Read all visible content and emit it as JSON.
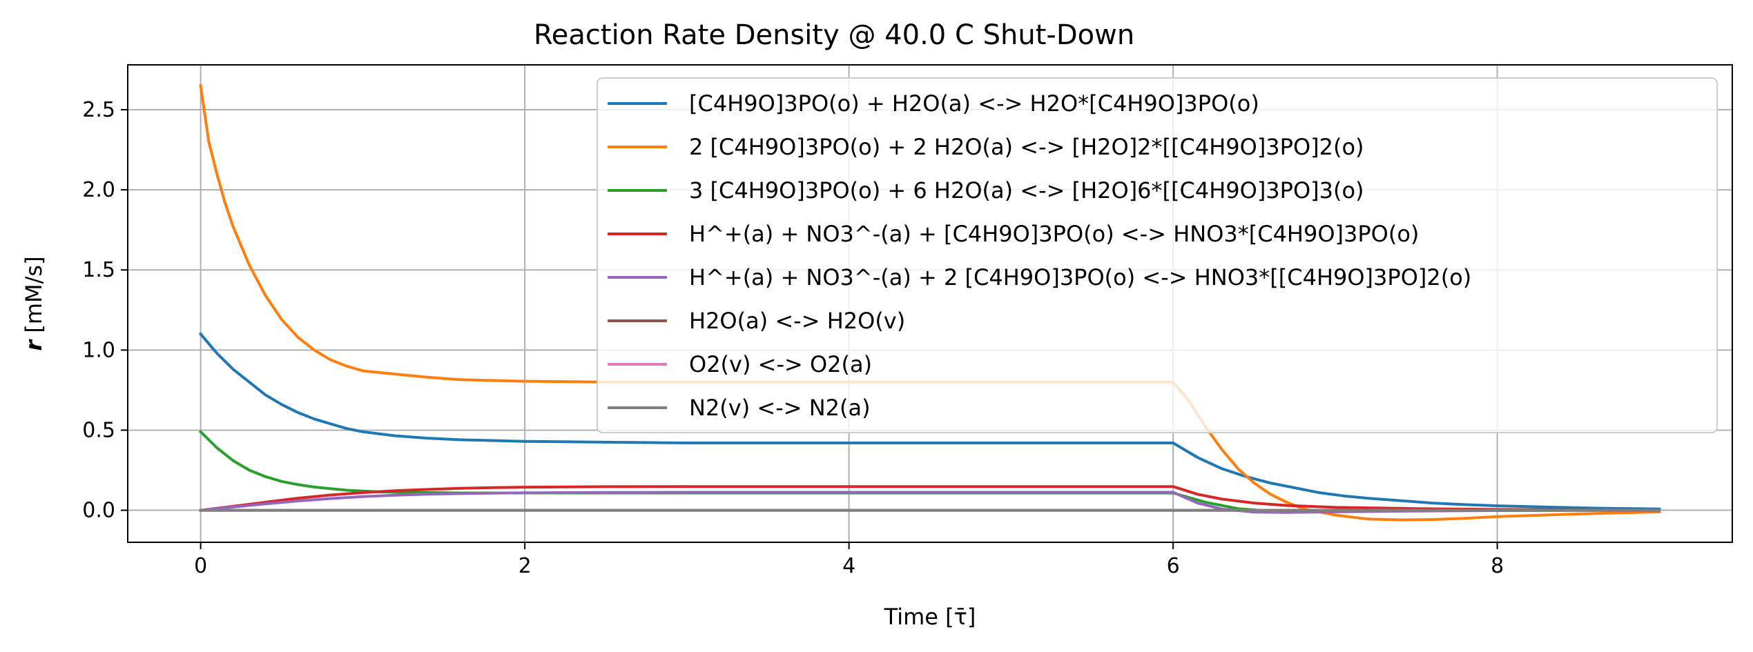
{
  "chart_data": {
    "type": "line",
    "title": "Reaction Rate Density @ 40.0 C Shut-Down",
    "xlabel": "Time [τ̄]",
    "ylabel_symbol": "r",
    "ylabel_unit": " [mM/s]",
    "xlim": [
      -0.45,
      9.45
    ],
    "ylim": [
      -0.2,
      2.78
    ],
    "x_ticks": [
      0,
      2,
      4,
      6,
      8
    ],
    "x_tick_labels": [
      "0",
      "2",
      "4",
      "6",
      "8"
    ],
    "y_ticks": [
      0.0,
      0.5,
      1.0,
      1.5,
      2.0,
      2.5
    ],
    "y_tick_labels": [
      "0.0",
      "0.5",
      "1.0",
      "1.5",
      "2.0",
      "2.5"
    ],
    "grid": true,
    "legend_position": "top-right",
    "series": [
      {
        "name": "[C4H9O]3PO(o) + H2O(a) <-> H2O*[C4H9O]3PO(o)",
        "color": "#1f77b4",
        "x": [
          0,
          0.1,
          0.2,
          0.3,
          0.4,
          0.5,
          0.6,
          0.7,
          0.8,
          0.9,
          1.0,
          1.2,
          1.4,
          1.6,
          1.8,
          2.0,
          2.5,
          3.0,
          4.0,
          5.0,
          6.0,
          6.15,
          6.3,
          6.45,
          6.6,
          6.75,
          6.9,
          7.05,
          7.2,
          7.4,
          7.6,
          7.8,
          8.0,
          8.3,
          8.6,
          9.0
        ],
        "y": [
          1.1,
          0.98,
          0.88,
          0.8,
          0.72,
          0.66,
          0.61,
          0.57,
          0.54,
          0.51,
          0.49,
          0.465,
          0.45,
          0.44,
          0.435,
          0.43,
          0.425,
          0.42,
          0.42,
          0.42,
          0.42,
          0.33,
          0.26,
          0.21,
          0.17,
          0.14,
          0.11,
          0.09,
          0.075,
          0.06,
          0.045,
          0.035,
          0.028,
          0.02,
          0.013,
          0.008
        ]
      },
      {
        "name": "2 [C4H9O]3PO(o) + 2 H2O(a) <-> [H2O]2*[[C4H9O]3PO]2(o)",
        "color": "#ff7f0e",
        "x": [
          0,
          0.05,
          0.1,
          0.15,
          0.2,
          0.3,
          0.4,
          0.5,
          0.6,
          0.7,
          0.8,
          0.9,
          1.0,
          1.2,
          1.4,
          1.6,
          1.8,
          2.0,
          2.5,
          3.0,
          4.0,
          5.0,
          6.0,
          6.1,
          6.2,
          6.3,
          6.4,
          6.5,
          6.6,
          6.7,
          6.8,
          7.0,
          7.2,
          7.4,
          7.6,
          7.8,
          8.0,
          8.3,
          8.6,
          9.0
        ],
        "y": [
          2.65,
          2.3,
          2.1,
          1.92,
          1.77,
          1.53,
          1.34,
          1.19,
          1.08,
          1.0,
          0.94,
          0.9,
          0.87,
          0.85,
          0.83,
          0.815,
          0.81,
          0.805,
          0.8,
          0.8,
          0.8,
          0.8,
          0.8,
          0.68,
          0.52,
          0.38,
          0.26,
          0.17,
          0.1,
          0.05,
          0.01,
          -0.03,
          -0.055,
          -0.06,
          -0.058,
          -0.05,
          -0.04,
          -0.03,
          -0.02,
          -0.01
        ]
      },
      {
        "name": "3 [C4H9O]3PO(o) + 6 H2O(a) <-> [H2O]6*[[C4H9O]3PO]3(o)",
        "color": "#2ca02c",
        "x": [
          0,
          0.1,
          0.2,
          0.3,
          0.4,
          0.5,
          0.6,
          0.7,
          0.8,
          0.9,
          1.0,
          1.1,
          1.2,
          1.4,
          1.6,
          2.0,
          3.0,
          4.0,
          5.0,
          6.0,
          6.2,
          6.4,
          6.6,
          7.0,
          8.0,
          9.0
        ],
        "y": [
          0.49,
          0.39,
          0.31,
          0.25,
          0.21,
          0.18,
          0.16,
          0.145,
          0.135,
          0.125,
          0.12,
          0.115,
          0.112,
          0.11,
          0.108,
          0.108,
          0.108,
          0.108,
          0.108,
          0.108,
          0.05,
          0.01,
          -0.005,
          -0.003,
          0.0,
          0.0
        ]
      },
      {
        "name": "H^+(a) + NO3^-(a) + [C4H9O]3PO(o) <-> HNO3*[C4H9O]3PO(o)",
        "color": "#d62728",
        "x": [
          0,
          0.2,
          0.4,
          0.6,
          0.8,
          1.0,
          1.2,
          1.4,
          1.6,
          1.8,
          2.0,
          2.5,
          3.0,
          4.0,
          5.0,
          6.0,
          6.15,
          6.3,
          6.5,
          6.7,
          7.0,
          7.5,
          8.0,
          9.0
        ],
        "y": [
          0.0,
          0.025,
          0.05,
          0.075,
          0.095,
          0.11,
          0.122,
          0.13,
          0.137,
          0.141,
          0.144,
          0.147,
          0.148,
          0.148,
          0.148,
          0.148,
          0.1,
          0.07,
          0.045,
          0.03,
          0.018,
          0.01,
          0.005,
          0.001
        ]
      },
      {
        "name": "H^+(a) + NO3^-(a) + 2 [C4H9O]3PO(o) <-> HNO3*[[C4H9O]3PO]2(o)",
        "color": "#9467bd",
        "x": [
          0,
          0.2,
          0.4,
          0.6,
          0.8,
          1.0,
          1.2,
          1.4,
          1.6,
          1.8,
          2.0,
          2.5,
          3.0,
          4.0,
          5.0,
          6.0,
          6.15,
          6.3,
          6.5,
          6.7,
          7.0,
          7.5,
          8.0,
          9.0
        ],
        "y": [
          0.0,
          0.02,
          0.04,
          0.058,
          0.073,
          0.085,
          0.094,
          0.1,
          0.104,
          0.107,
          0.109,
          0.111,
          0.112,
          0.112,
          0.112,
          0.112,
          0.045,
          0.008,
          -0.012,
          -0.014,
          -0.01,
          -0.005,
          -0.002,
          0.0
        ]
      },
      {
        "name": "H2O(a) <-> H2O(v)",
        "color": "#8c564b",
        "x": [
          0,
          9.0
        ],
        "y": [
          0.0,
          0.0
        ]
      },
      {
        "name": "O2(v) <-> O2(a)",
        "color": "#e377c2",
        "x": [
          0,
          9.0
        ],
        "y": [
          0.0,
          0.0
        ]
      },
      {
        "name": "N2(v) <-> N2(a)",
        "color": "#7f7f7f",
        "x": [
          0,
          9.0
        ],
        "y": [
          0.0,
          0.0
        ]
      }
    ]
  }
}
